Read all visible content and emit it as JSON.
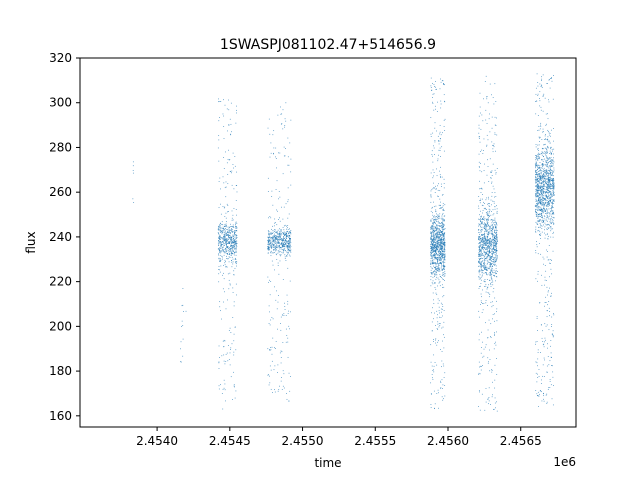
{
  "chart_data": {
    "type": "scatter",
    "title": "1SWASPJ081102.47+514656.9",
    "xlabel": "time",
    "ylabel": "flux",
    "x_offset_label": "1e6",
    "xlim": [
      2.45347,
      2.45688
    ],
    "ylim": [
      155,
      320
    ],
    "x_ticks": [
      2.454,
      2.4545,
      2.455,
      2.4555,
      2.456,
      2.4565
    ],
    "x_tick_labels": [
      "2.4540",
      "2.4545",
      "2.4550",
      "2.4555",
      "2.4560",
      "2.4565"
    ],
    "y_ticks": [
      160,
      180,
      200,
      220,
      240,
      260,
      280,
      300,
      320
    ],
    "y_tick_labels": [
      "160",
      "180",
      "200",
      "220",
      "240",
      "260",
      "280",
      "300",
      "320"
    ],
    "grid": false,
    "legend": "none",
    "series": [
      {
        "color": "#1f77b4",
        "clusters": [
          {
            "t_start": 2.45383,
            "t_end": 2.45384,
            "flux_center": 268,
            "core_spread": 4,
            "flux_min": 253,
            "flux_max": 274,
            "n_points": 6
          },
          {
            "t_start": 2.45416,
            "t_end": 2.4542,
            "flux_center": 205,
            "core_spread": 15,
            "flux_min": 176,
            "flux_max": 226,
            "n_points": 14
          },
          {
            "t_start": 2.45442,
            "t_end": 2.45455,
            "flux_center": 238,
            "core_spread": 5,
            "flux_min": 162,
            "flux_max": 302,
            "n_points": 650
          },
          {
            "t_start": 2.45476,
            "t_end": 2.45492,
            "flux_center": 238,
            "core_spread": 3,
            "flux_min": 166,
            "flux_max": 301,
            "n_points": 650
          },
          {
            "t_start": 2.45588,
            "t_end": 2.45598,
            "flux_center": 236,
            "core_spread": 7,
            "flux_min": 163,
            "flux_max": 312,
            "n_points": 1100
          },
          {
            "t_start": 2.45621,
            "t_end": 2.45634,
            "flux_center": 236,
            "core_spread": 8,
            "flux_min": 162,
            "flux_max": 312,
            "n_points": 1100
          },
          {
            "t_start": 2.4566,
            "t_end": 2.45673,
            "flux_center": 262,
            "core_spread": 9,
            "flux_min": 163,
            "flux_max": 313,
            "n_points": 1300
          }
        ]
      }
    ]
  }
}
